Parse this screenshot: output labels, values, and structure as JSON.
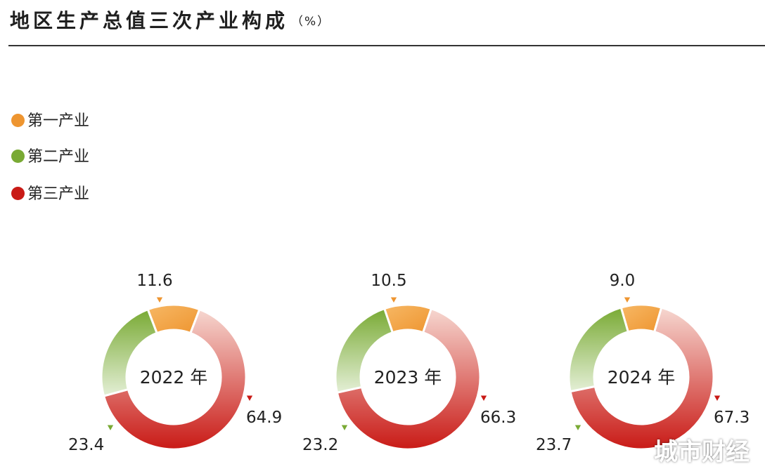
{
  "title": "地区生产总值三次产业构成",
  "title_unit": "（%）",
  "colors": {
    "primary": "#ee9530",
    "secondary": "#79aa34",
    "tertiary": "#c91a16"
  },
  "legend": [
    {
      "label": "第一产业",
      "color": "#ee9530"
    },
    {
      "label": "第二产业",
      "color": "#79aa34"
    },
    {
      "label": "第三产业",
      "color": "#c91a16"
    }
  ],
  "chart_data": {
    "type": "pie",
    "variant": "donut",
    "unit": "%",
    "categories": [
      "第一产业",
      "第二产业",
      "第三产业"
    ],
    "charts": [
      {
        "center_label": "2022 年",
        "values": [
          11.6,
          23.4,
          64.9
        ],
        "labels": [
          "11.6",
          "23.4",
          "64.9"
        ]
      },
      {
        "center_label": "2023 年",
        "values": [
          10.5,
          23.2,
          66.3
        ],
        "labels": [
          "10.5",
          "23.2",
          "66.3"
        ]
      },
      {
        "center_label": "2024 年",
        "values": [
          9.0,
          23.7,
          67.3
        ],
        "labels": [
          "9.0",
          "23.7",
          "67.3"
        ]
      }
    ]
  },
  "watermark": "城市财经"
}
